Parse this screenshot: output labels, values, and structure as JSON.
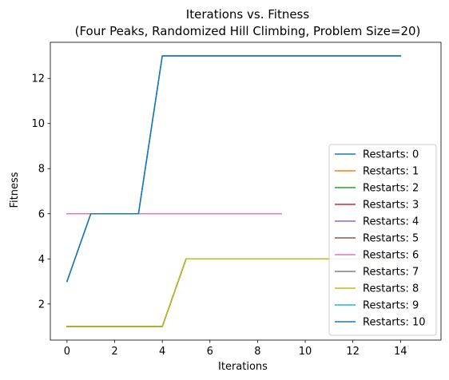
{
  "chart_data": {
    "type": "line",
    "title_line1": "Iterations vs. Fitness",
    "title_line2": "(Four Peaks, Randomized Hill Climbing, Problem Size=20)",
    "xlabel": "Iterations",
    "ylabel": "Fitness",
    "xlim": [
      -0.7,
      15.7
    ],
    "ylim": [
      0.4,
      13.6
    ],
    "xticks": [
      0,
      2,
      4,
      6,
      8,
      10,
      12,
      14
    ],
    "yticks": [
      2,
      4,
      6,
      8,
      10,
      12
    ],
    "legend_position": "lower-right",
    "series": [
      {
        "name": "Restarts: 0",
        "color": "#1f77b4",
        "x": [
          0,
          1,
          2,
          3,
          4,
          5,
          6,
          7,
          8,
          9,
          10,
          11,
          12,
          13,
          14
        ],
        "y": [
          3,
          6,
          6,
          6,
          13,
          13,
          13,
          13,
          13,
          13,
          13,
          13,
          13,
          13,
          13
        ]
      },
      {
        "name": "Restarts: 1",
        "color": "#ff7f0e",
        "x": [
          0,
          1,
          2,
          3,
          4,
          5,
          6,
          7,
          8,
          9,
          10,
          11,
          12,
          13,
          14
        ],
        "y": [
          1,
          1,
          1,
          1,
          1,
          4,
          4,
          4,
          4,
          4,
          4,
          4,
          4,
          4,
          4
        ]
      },
      {
        "name": "Restarts: 2",
        "color": "#2ca02c",
        "x": [
          0,
          1,
          2,
          3,
          4,
          5,
          6,
          7,
          8,
          9,
          10,
          11,
          12,
          13,
          14
        ],
        "y": [
          1,
          1,
          1,
          1,
          1,
          4,
          4,
          4,
          4,
          4,
          4,
          4,
          4,
          4,
          4
        ]
      },
      {
        "name": "Restarts: 3",
        "color": "#d62728",
        "x": [
          0,
          1,
          2,
          3,
          4,
          5,
          6,
          7,
          8,
          9,
          10,
          11,
          12,
          13,
          14
        ],
        "y": [
          1,
          1,
          1,
          1,
          1,
          4,
          4,
          4,
          4,
          4,
          4,
          4,
          4,
          4,
          4
        ]
      },
      {
        "name": "Restarts: 4",
        "color": "#9467bd",
        "x": [
          0,
          1,
          2,
          3,
          4,
          5,
          6,
          7,
          8,
          9
        ],
        "y": [
          6,
          6,
          6,
          6,
          6,
          6,
          6,
          6,
          6,
          6
        ]
      },
      {
        "name": "Restarts: 5",
        "color": "#8c564b",
        "x": [
          0,
          1,
          2,
          3,
          4,
          5,
          6,
          7,
          8,
          9
        ],
        "y": [
          6,
          6,
          6,
          6,
          6,
          6,
          6,
          6,
          6,
          6
        ]
      },
      {
        "name": "Restarts: 6",
        "color": "#e377c2",
        "x": [
          0,
          1,
          2,
          3,
          4,
          5,
          6,
          7,
          8,
          9
        ],
        "y": [
          6,
          6,
          6,
          6,
          6,
          6,
          6,
          6,
          6,
          6
        ]
      },
      {
        "name": "Restarts: 7",
        "color": "#7f7f7f",
        "x": [
          0,
          1,
          2,
          3,
          4,
          5,
          6,
          7,
          8,
          9,
          10,
          11,
          12,
          13,
          14
        ],
        "y": [
          1,
          1,
          1,
          1,
          1,
          4,
          4,
          4,
          4,
          4,
          4,
          4,
          4,
          4,
          4
        ]
      },
      {
        "name": "Restarts: 8",
        "color": "#bcbd22",
        "x": [
          0,
          1,
          2,
          3,
          4,
          5,
          6,
          7,
          8,
          9,
          10,
          11,
          12,
          13,
          14
        ],
        "y": [
          1,
          1,
          1,
          1,
          1,
          4,
          4,
          4,
          4,
          4,
          4,
          4,
          4,
          4,
          4
        ]
      },
      {
        "name": "Restarts: 9",
        "color": "#17becf",
        "x": [
          0,
          1,
          2,
          3,
          4,
          5,
          6,
          7,
          8,
          9,
          10,
          11,
          12,
          13,
          14
        ],
        "y": [
          3,
          6,
          6,
          6,
          13,
          13,
          13,
          13,
          13,
          13,
          13,
          13,
          13,
          13,
          13
        ]
      },
      {
        "name": "Restarts: 10",
        "color": "#1f77b4",
        "x": [
          0,
          1,
          2,
          3,
          4,
          5,
          6,
          7,
          8,
          9,
          10,
          11,
          12,
          13,
          14
        ],
        "y": [
          3,
          6,
          6,
          6,
          13,
          13,
          13,
          13,
          13,
          13,
          13,
          13,
          13,
          13,
          13
        ]
      }
    ]
  }
}
